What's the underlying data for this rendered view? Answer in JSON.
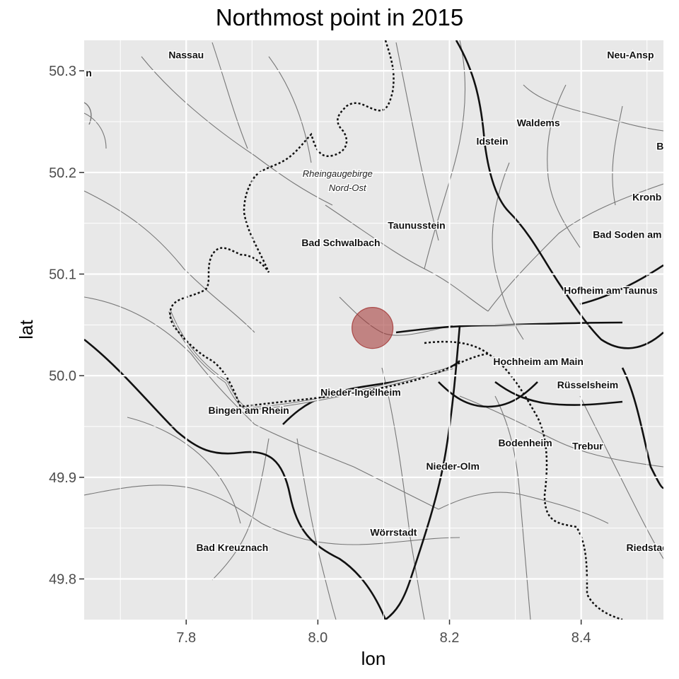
{
  "chart_data": {
    "type": "scatter",
    "title": "Northmost point in 2015",
    "xlabel": "lon",
    "ylabel": "lat",
    "xlim": [
      7.645,
      8.525
    ],
    "ylim": [
      49.76,
      50.33
    ],
    "x_ticks": [
      "7.8",
      "8.0",
      "8.2",
      "8.4"
    ],
    "x_tick_values": [
      7.8,
      8.0,
      8.2,
      8.4
    ],
    "y_ticks": [
      "49.8",
      "49.9",
      "50.0",
      "50.1",
      "50.2",
      "50.3"
    ],
    "y_tick_values": [
      49.8,
      49.9,
      50.0,
      50.1,
      50.2,
      50.3
    ],
    "grid": true,
    "points": [
      {
        "lon": 8.083,
        "lat": 50.047,
        "color": "#a0302e"
      }
    ],
    "background": "basemap"
  },
  "map": {
    "places": [
      {
        "label": "Nassau",
        "lon": 7.8,
        "lat": 50.315
      },
      {
        "label": "Neu-Ansp",
        "lon": 8.475,
        "lat": 50.315
      },
      {
        "label": "Waldems",
        "lon": 8.335,
        "lat": 50.248
      },
      {
        "label": "Idstein",
        "lon": 8.265,
        "lat": 50.23
      },
      {
        "label": "B",
        "lon": 8.52,
        "lat": 50.225
      },
      {
        "label": "Kronb",
        "lon": 8.5,
        "lat": 50.175
      },
      {
        "label": "Taunusstein",
        "lon": 8.15,
        "lat": 50.147
      },
      {
        "label": "Bad Schwalbach",
        "lon": 8.035,
        "lat": 50.13
      },
      {
        "label": "Bad Soden am",
        "lon": 8.47,
        "lat": 50.138
      },
      {
        "label": "Hofheim am Taunus",
        "lon": 8.445,
        "lat": 50.083
      },
      {
        "label": "Hochheim am Main",
        "lon": 8.335,
        "lat": 50.013
      },
      {
        "label": "Rüsselsheim",
        "lon": 8.41,
        "lat": 49.99
      },
      {
        "label": "Nieder-Ingelheim",
        "lon": 8.065,
        "lat": 49.983
      },
      {
        "label": "Bingen am Rhein",
        "lon": 7.895,
        "lat": 49.965
      },
      {
        "label": "Bodenheim",
        "lon": 8.315,
        "lat": 49.933
      },
      {
        "label": "Trebur",
        "lon": 8.41,
        "lat": 49.93
      },
      {
        "label": "Nieder-Olm",
        "lon": 8.205,
        "lat": 49.91
      },
      {
        "label": "Wörrstadt",
        "lon": 8.115,
        "lat": 49.845
      },
      {
        "label": "Bad Kreuznach",
        "lon": 7.87,
        "lat": 49.83
      },
      {
        "label": "Riedstac",
        "lon": 8.5,
        "lat": 49.83
      },
      {
        "label": "n",
        "lon": 7.652,
        "lat": 50.297
      }
    ],
    "italic_labels": [
      {
        "label": "Rheingaugebirge",
        "lon": 8.03,
        "lat": 50.198
      },
      {
        "label": "Nord-Ost",
        "lon": 8.045,
        "lat": 50.184
      }
    ]
  }
}
